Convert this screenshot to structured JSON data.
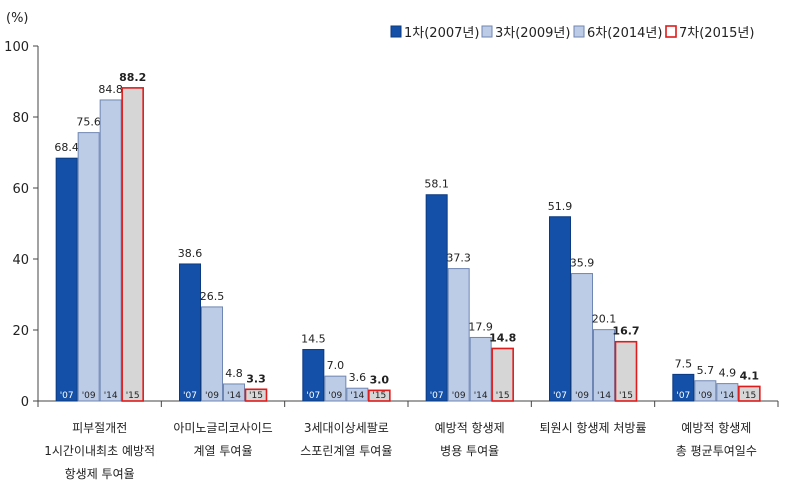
{
  "chart_data": {
    "type": "bar",
    "ylabel": "(%)",
    "ylim": [
      0,
      100
    ],
    "yticks": [
      0,
      20,
      40,
      60,
      80,
      100
    ],
    "grid": false,
    "legend_position": "top-right",
    "categories": [
      [
        "피부절개전",
        "1시간이내최초 예방적",
        "항생제 투여율"
      ],
      [
        "아미노글리코사이드",
        "계열 투여율"
      ],
      [
        "3세대이상세팔로",
        "스포린계열 투여율"
      ],
      [
        "예방적 항생제",
        "병용 투여율"
      ],
      [
        "퇴원시 항생제 처방률"
      ],
      [
        "예방적 항생제",
        "총 평균투여일수"
      ]
    ],
    "year_tags": [
      "'07",
      "'09",
      "'14",
      "'15"
    ],
    "series": [
      {
        "name": "1차(2007년)",
        "color": "#1450A8",
        "edge": "#0b3a80",
        "values": [
          68.4,
          38.6,
          14.5,
          58.1,
          51.9,
          7.5
        ]
      },
      {
        "name": "3차(2009년)",
        "color": "#BCCCE6",
        "edge": "#6f86b3",
        "values": [
          75.6,
          26.5,
          7.0,
          37.3,
          35.9,
          5.7
        ]
      },
      {
        "name": "6차(2014년)",
        "color": "#BCCCE6",
        "edge": "#6f86b3",
        "values": [
          84.8,
          4.8,
          3.6,
          17.9,
          20.1,
          4.9
        ]
      },
      {
        "name": "7차(2015년)",
        "color": "#D6D6D6",
        "edge": "#E01B1B",
        "values": [
          88.2,
          3.3,
          3.0,
          14.8,
          16.7,
          4.1
        ],
        "bold_labels": true
      }
    ],
    "value_labels": [
      [
        "68.4",
        "38.6",
        "14.5",
        "58.1",
        "51.9",
        "7.5"
      ],
      [
        "75.6",
        "26.5",
        "7.0",
        "37.3",
        "35.9",
        "5.7"
      ],
      [
        "84.8",
        "4.8",
        "3.6",
        "17.9",
        "20.1",
        "4.9"
      ],
      [
        "88.2",
        "3.3",
        "3.0",
        "14.8",
        "16.7",
        "4.1"
      ]
    ]
  }
}
